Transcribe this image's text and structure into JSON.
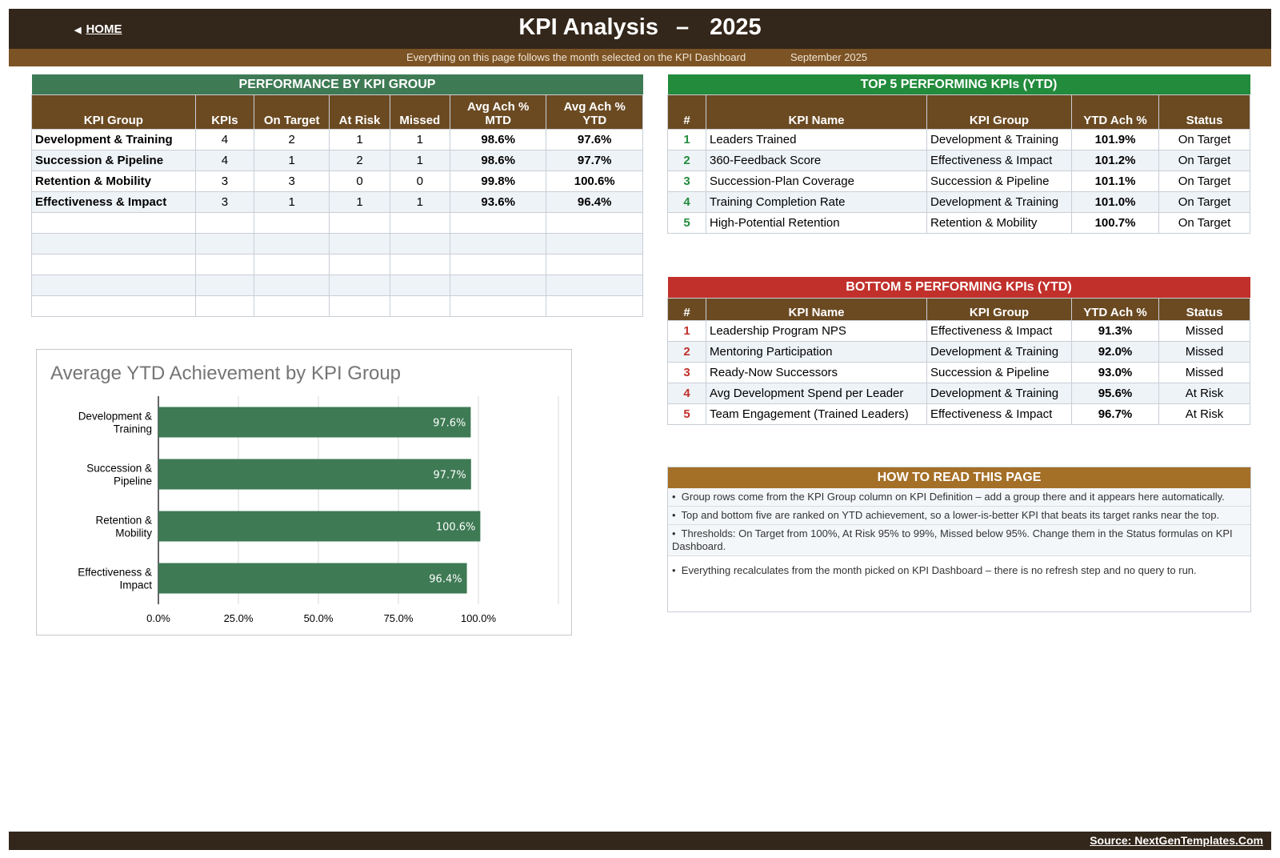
{
  "header": {
    "home_label": "HOME",
    "title": "KPI Analysis",
    "year": "2025",
    "subtitle": "Everything on this page follows the month selected on the KPI Dashboard",
    "month": "September 2025"
  },
  "perf_table": {
    "title": "PERFORMANCE BY KPI GROUP",
    "columns": [
      "KPI Group",
      "KPIs",
      "On Target",
      "At Risk",
      "Missed",
      "Avg Ach % MTD",
      "Avg Ach % YTD"
    ],
    "col_mtd_1": "Avg Ach %",
    "col_mtd_2": "MTD",
    "col_ytd_1": "Avg Ach %",
    "col_ytd_2": "YTD",
    "rows": [
      {
        "group": "Development & Training",
        "kpis": "4",
        "on_target": "2",
        "at_risk": "1",
        "missed": "1",
        "mtd": "98.6%",
        "ytd": "97.6%"
      },
      {
        "group": "Succession & Pipeline",
        "kpis": "4",
        "on_target": "1",
        "at_risk": "2",
        "missed": "1",
        "mtd": "98.6%",
        "ytd": "97.7%"
      },
      {
        "group": "Retention & Mobility",
        "kpis": "3",
        "on_target": "3",
        "at_risk": "0",
        "missed": "0",
        "mtd": "99.8%",
        "ytd": "100.6%"
      },
      {
        "group": "Effectiveness & Impact",
        "kpis": "3",
        "on_target": "1",
        "at_risk": "1",
        "missed": "1",
        "mtd": "93.6%",
        "ytd": "96.4%"
      }
    ]
  },
  "top5": {
    "title": "TOP 5 PERFORMING KPIs  (YTD)",
    "columns": [
      "#",
      "KPI Name",
      "KPI Group",
      "YTD Ach %",
      "Status"
    ],
    "rows": [
      {
        "rank": "1",
        "name": "Leaders Trained",
        "group": "Development & Training",
        "ytd": "101.9%",
        "status": "On Target"
      },
      {
        "rank": "2",
        "name": "360-Feedback Score",
        "group": "Effectiveness & Impact",
        "ytd": "101.2%",
        "status": "On Target"
      },
      {
        "rank": "3",
        "name": "Succession-Plan Coverage",
        "group": "Succession & Pipeline",
        "ytd": "101.1%",
        "status": "On Target"
      },
      {
        "rank": "4",
        "name": "Training Completion Rate",
        "group": "Development & Training",
        "ytd": "101.0%",
        "status": "On Target"
      },
      {
        "rank": "5",
        "name": "High-Potential Retention",
        "group": "Retention & Mobility",
        "ytd": "100.7%",
        "status": "On Target"
      }
    ]
  },
  "bottom5": {
    "title": "BOTTOM 5 PERFORMING KPIs  (YTD)",
    "columns": [
      "#",
      "KPI Name",
      "KPI Group",
      "YTD Ach %",
      "Status"
    ],
    "rows": [
      {
        "rank": "1",
        "name": "Leadership Program NPS",
        "group": "Effectiveness & Impact",
        "ytd": "91.3%",
        "status": "Missed"
      },
      {
        "rank": "2",
        "name": "Mentoring Participation",
        "group": "Development & Training",
        "ytd": "92.0%",
        "status": "Missed"
      },
      {
        "rank": "3",
        "name": "Ready-Now Successors",
        "group": "Succession & Pipeline",
        "ytd": "93.0%",
        "status": "Missed"
      },
      {
        "rank": "4",
        "name": "Avg Development Spend per Leader",
        "group": "Development & Training",
        "ytd": "95.6%",
        "status": "At Risk"
      },
      {
        "rank": "5",
        "name": "Team Engagement (Trained Leaders)",
        "group": "Effectiveness & Impact",
        "ytd": "96.7%",
        "status": "At Risk"
      }
    ]
  },
  "howto": {
    "title": "HOW TO READ THIS PAGE",
    "notes": [
      "Group rows come from the KPI Group column on KPI Definition – add a group there and it appears here automatically.",
      "Top and bottom five are ranked on YTD achievement, so a lower-is-better KPI that beats its target ranks near the top.",
      "Thresholds: On Target from 100%, At Risk 95% to 99%, Missed below 95%. Change them in the Status formulas on KPI Dashboard.",
      "Everything recalculates from the month picked on KPI Dashboard – there is no refresh step and no query to run."
    ]
  },
  "chart_data": {
    "type": "bar",
    "orientation": "horizontal",
    "title": "Average YTD Achievement by KPI Group",
    "categories": [
      [
        "Development &",
        "Training"
      ],
      [
        "Succession &",
        "Pipeline"
      ],
      [
        "Retention &",
        "Mobility"
      ],
      [
        "Effectiveness &",
        "Impact"
      ]
    ],
    "values": [
      97.6,
      97.7,
      100.6,
      96.4
    ],
    "data_labels": [
      "97.6%",
      "97.7%",
      "100.6%",
      "96.4%"
    ],
    "x_ticks": [
      "0.0%",
      "25.0%",
      "50.0%",
      "75.0%",
      "100.0%"
    ],
    "xlim": [
      0,
      125
    ],
    "grid": true,
    "bar_color": "#3e7a54"
  },
  "footer": {
    "source": "Source: NextGenTemplates.Com"
  }
}
